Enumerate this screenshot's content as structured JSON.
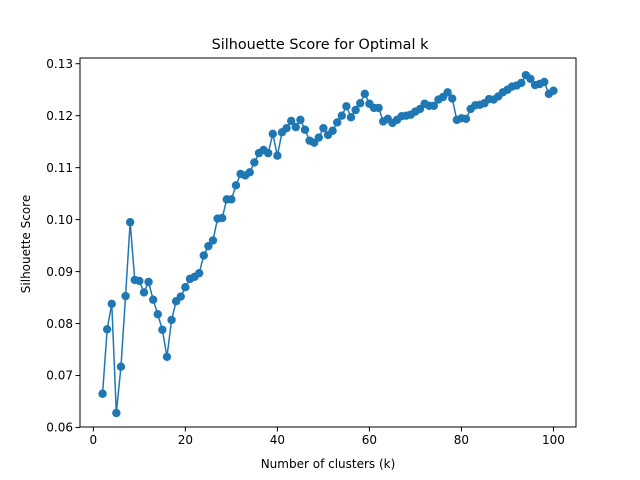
{
  "chart_data": {
    "type": "line",
    "title": "Silhouette Score for Optimal k",
    "xlabel": "Number of clusters (k)",
    "ylabel": "Silhouette Score",
    "xlim": [
      -2.9,
      104.9
    ],
    "ylim": [
      0.0601,
      0.1311
    ],
    "xticks": [
      0,
      20,
      40,
      60,
      80,
      100
    ],
    "yticks": [
      0.06,
      0.07,
      0.08,
      0.09,
      0.1,
      0.11,
      0.12,
      0.13
    ],
    "ytick_labels": [
      "0.06",
      "0.07",
      "0.08",
      "0.09",
      "0.10",
      "0.11",
      "0.12",
      "0.13"
    ],
    "grid": false,
    "markers": true,
    "series_color": "#1f77b4",
    "x": [
      2,
      3,
      4,
      5,
      6,
      7,
      8,
      9,
      10,
      11,
      12,
      13,
      14,
      15,
      16,
      17,
      18,
      19,
      20,
      21,
      22,
      23,
      24,
      25,
      26,
      27,
      28,
      29,
      30,
      31,
      32,
      33,
      34,
      35,
      36,
      37,
      38,
      39,
      40,
      41,
      42,
      43,
      44,
      45,
      46,
      47,
      48,
      49,
      50,
      51,
      52,
      53,
      54,
      55,
      56,
      57,
      58,
      59,
      60,
      61,
      62,
      63,
      64,
      65,
      66,
      67,
      68,
      69,
      70,
      71,
      72,
      73,
      74,
      75,
      76,
      77,
      78,
      79,
      80,
      81,
      82,
      83,
      84,
      85,
      86,
      87,
      88,
      89,
      90,
      91,
      92,
      93,
      94,
      95,
      96,
      97,
      98,
      99,
      100
    ],
    "y": [
      0.0665,
      0.0789,
      0.0838,
      0.0628,
      0.0717,
      0.0853,
      0.0995,
      0.0884,
      0.0882,
      0.086,
      0.088,
      0.0846,
      0.0818,
      0.0788,
      0.0736,
      0.0807,
      0.0843,
      0.0852,
      0.087,
      0.0886,
      0.089,
      0.0897,
      0.0931,
      0.0949,
      0.096,
      0.1002,
      0.1003,
      0.1039,
      0.1039,
      0.1066,
      0.1088,
      0.1085,
      0.1091,
      0.111,
      0.1128,
      0.1134,
      0.1128,
      0.1165,
      0.1123,
      0.1168,
      0.1176,
      0.119,
      0.1178,
      0.1192,
      0.1173,
      0.1152,
      0.1148,
      0.1158,
      0.1176,
      0.1163,
      0.1171,
      0.1187,
      0.12,
      0.1218,
      0.1197,
      0.1211,
      0.1224,
      0.1242,
      0.1223,
      0.1215,
      0.1215,
      0.1189,
      0.1194,
      0.1186,
      0.1192,
      0.1199,
      0.12,
      0.1202,
      0.1208,
      0.1213,
      0.1223,
      0.1219,
      0.1219,
      0.1231,
      0.1236,
      0.1245,
      0.1233,
      0.1192,
      0.1195,
      0.1194,
      0.1213,
      0.122,
      0.1221,
      0.1224,
      0.1232,
      0.1231,
      0.1237,
      0.1245,
      0.125,
      0.1256,
      0.1258,
      0.1263,
      0.1278,
      0.1271,
      0.1259,
      0.1261,
      0.1265,
      0.1242,
      0.1248
    ]
  }
}
